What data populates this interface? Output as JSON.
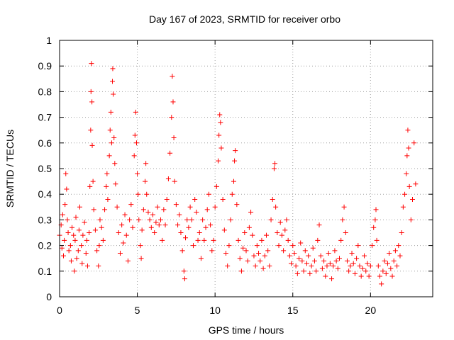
{
  "chart_data": {
    "type": "scatter",
    "title": "Day 167 of 2023, SRMTID for receiver orbo",
    "xlabel": "GPS time / hours",
    "ylabel": "SRMTID / TECUs",
    "xlim": [
      0,
      24
    ],
    "ylim": [
      0,
      1
    ],
    "xticks": [
      0,
      5,
      10,
      15,
      20
    ],
    "xtick_labels": [
      "0",
      "5",
      "10",
      "15",
      "20"
    ],
    "yticks": [
      0,
      0.1,
      0.2,
      0.3,
      0.4,
      0.5,
      0.6,
      0.7,
      0.8,
      0.9,
      1
    ],
    "ytick_labels": [
      "0",
      "0.1",
      "0.2",
      "0.3",
      "0.4",
      "0.5",
      "0.6",
      "0.7",
      "0.8",
      "0.9",
      "1"
    ],
    "grid": true,
    "marker": "+",
    "series": [
      {
        "name": "SRMTID",
        "color": "#ff0000",
        "points": [
          [
            0.0,
            0.24
          ],
          [
            0.1,
            0.28
          ],
          [
            0.15,
            0.19
          ],
          [
            0.2,
            0.32
          ],
          [
            0.25,
            0.16
          ],
          [
            0.3,
            0.22
          ],
          [
            0.35,
            0.36
          ],
          [
            0.4,
            0.48
          ],
          [
            0.45,
            0.42
          ],
          [
            0.5,
            0.3
          ],
          [
            0.55,
            0.25
          ],
          [
            0.6,
            0.18
          ],
          [
            0.7,
            0.2
          ],
          [
            0.75,
            0.14
          ],
          [
            0.8,
            0.27
          ],
          [
            0.9,
            0.24
          ],
          [
            0.95,
            0.1
          ],
          [
            1.0,
            0.22
          ],
          [
            1.05,
            0.31
          ],
          [
            1.1,
            0.15
          ],
          [
            1.2,
            0.18
          ],
          [
            1.25,
            0.26
          ],
          [
            1.3,
            0.35
          ],
          [
            1.4,
            0.2
          ],
          [
            1.45,
            0.13
          ],
          [
            1.5,
            0.24
          ],
          [
            1.6,
            0.29
          ],
          [
            1.7,
            0.17
          ],
          [
            1.75,
            0.22
          ],
          [
            1.8,
            0.12
          ],
          [
            1.9,
            0.25
          ],
          [
            1.95,
            0.43
          ],
          [
            2.0,
            0.65
          ],
          [
            2.02,
            0.8
          ],
          [
            2.05,
            0.91
          ],
          [
            2.08,
            0.76
          ],
          [
            2.1,
            0.59
          ],
          [
            2.15,
            0.45
          ],
          [
            2.2,
            0.34
          ],
          [
            2.3,
            0.26
          ],
          [
            2.4,
            0.18
          ],
          [
            2.5,
            0.12
          ],
          [
            2.55,
            0.2
          ],
          [
            2.6,
            0.3
          ],
          [
            2.7,
            0.27
          ],
          [
            2.8,
            0.22
          ],
          [
            2.9,
            0.34
          ],
          [
            3.0,
            0.43
          ],
          [
            3.05,
            0.48
          ],
          [
            3.1,
            0.38
          ],
          [
            3.2,
            0.55
          ],
          [
            3.25,
            0.65
          ],
          [
            3.3,
            0.72
          ],
          [
            3.35,
            0.6
          ],
          [
            3.4,
            0.84
          ],
          [
            3.42,
            0.89
          ],
          [
            3.45,
            0.79
          ],
          [
            3.5,
            0.62
          ],
          [
            3.55,
            0.52
          ],
          [
            3.6,
            0.44
          ],
          [
            3.7,
            0.35
          ],
          [
            3.8,
            0.25
          ],
          [
            3.9,
            0.17
          ],
          [
            4.0,
            0.28
          ],
          [
            4.1,
            0.21
          ],
          [
            4.2,
            0.32
          ],
          [
            4.3,
            0.24
          ],
          [
            4.4,
            0.14
          ],
          [
            4.5,
            0.3
          ],
          [
            4.6,
            0.36
          ],
          [
            4.7,
            0.27
          ],
          [
            4.8,
            0.55
          ],
          [
            4.85,
            0.63
          ],
          [
            4.9,
            0.72
          ],
          [
            4.95,
            0.6
          ],
          [
            5.0,
            0.48
          ],
          [
            5.05,
            0.4
          ],
          [
            5.1,
            0.3
          ],
          [
            5.2,
            0.2
          ],
          [
            5.25,
            0.15
          ],
          [
            5.3,
            0.26
          ],
          [
            5.4,
            0.34
          ],
          [
            5.5,
            0.45
          ],
          [
            5.55,
            0.52
          ],
          [
            5.6,
            0.4
          ],
          [
            5.7,
            0.33
          ],
          [
            5.8,
            0.3
          ],
          [
            5.9,
            0.27
          ],
          [
            6.0,
            0.32
          ],
          [
            6.1,
            0.25
          ],
          [
            6.2,
            0.29
          ],
          [
            6.3,
            0.35
          ],
          [
            6.4,
            0.28
          ],
          [
            6.5,
            0.3
          ],
          [
            6.6,
            0.22
          ],
          [
            6.7,
            0.34
          ],
          [
            6.8,
            0.28
          ],
          [
            6.9,
            0.38
          ],
          [
            7.0,
            0.46
          ],
          [
            7.1,
            0.56
          ],
          [
            7.2,
            0.7
          ],
          [
            7.25,
            0.86
          ],
          [
            7.3,
            0.76
          ],
          [
            7.35,
            0.62
          ],
          [
            7.4,
            0.45
          ],
          [
            7.5,
            0.36
          ],
          [
            7.6,
            0.28
          ],
          [
            7.7,
            0.32
          ],
          [
            7.8,
            0.25
          ],
          [
            7.9,
            0.18
          ],
          [
            8.0,
            0.1
          ],
          [
            8.05,
            0.07
          ],
          [
            8.1,
            0.23
          ],
          [
            8.2,
            0.3
          ],
          [
            8.3,
            0.27
          ],
          [
            8.4,
            0.35
          ],
          [
            8.5,
            0.3
          ],
          [
            8.6,
            0.2
          ],
          [
            8.7,
            0.38
          ],
          [
            8.8,
            0.33
          ],
          [
            8.9,
            0.22
          ],
          [
            9.0,
            0.25
          ],
          [
            9.1,
            0.15
          ],
          [
            9.2,
            0.3
          ],
          [
            9.3,
            0.22
          ],
          [
            9.4,
            0.27
          ],
          [
            9.5,
            0.34
          ],
          [
            9.6,
            0.4
          ],
          [
            9.7,
            0.28
          ],
          [
            9.8,
            0.18
          ],
          [
            9.9,
            0.22
          ],
          [
            10.0,
            0.35
          ],
          [
            10.1,
            0.43
          ],
          [
            10.2,
            0.53
          ],
          [
            10.25,
            0.63
          ],
          [
            10.3,
            0.71
          ],
          [
            10.35,
            0.68
          ],
          [
            10.4,
            0.58
          ],
          [
            10.5,
            0.38
          ],
          [
            10.6,
            0.26
          ],
          [
            10.7,
            0.17
          ],
          [
            10.8,
            0.12
          ],
          [
            10.9,
            0.2
          ],
          [
            11.0,
            0.3
          ],
          [
            11.1,
            0.4
          ],
          [
            11.2,
            0.45
          ],
          [
            11.25,
            0.53
          ],
          [
            11.3,
            0.57
          ],
          [
            11.4,
            0.36
          ],
          [
            11.5,
            0.22
          ],
          [
            11.6,
            0.15
          ],
          [
            11.7,
            0.1
          ],
          [
            11.8,
            0.19
          ],
          [
            11.9,
            0.25
          ],
          [
            12.0,
            0.18
          ],
          [
            12.1,
            0.14
          ],
          [
            12.2,
            0.27
          ],
          [
            12.3,
            0.33
          ],
          [
            12.4,
            0.24
          ],
          [
            12.5,
            0.16
          ],
          [
            12.6,
            0.12
          ],
          [
            12.7,
            0.2
          ],
          [
            12.8,
            0.17
          ],
          [
            12.9,
            0.14
          ],
          [
            13.0,
            0.22
          ],
          [
            13.1,
            0.11
          ],
          [
            13.2,
            0.16
          ],
          [
            13.3,
            0.24
          ],
          [
            13.4,
            0.18
          ],
          [
            13.5,
            0.12
          ],
          [
            13.6,
            0.3
          ],
          [
            13.7,
            0.38
          ],
          [
            13.8,
            0.5
          ],
          [
            13.85,
            0.52
          ],
          [
            13.9,
            0.35
          ],
          [
            14.0,
            0.25
          ],
          [
            14.1,
            0.2
          ],
          [
            14.2,
            0.29
          ],
          [
            14.3,
            0.24
          ],
          [
            14.4,
            0.18
          ],
          [
            14.5,
            0.26
          ],
          [
            14.6,
            0.3
          ],
          [
            14.7,
            0.22
          ],
          [
            14.8,
            0.16
          ],
          [
            14.9,
            0.13
          ],
          [
            15.0,
            0.2
          ],
          [
            15.1,
            0.17
          ],
          [
            15.2,
            0.12
          ],
          [
            15.3,
            0.09
          ],
          [
            15.4,
            0.15
          ],
          [
            15.5,
            0.21
          ],
          [
            15.6,
            0.14
          ],
          [
            15.7,
            0.1
          ],
          [
            15.8,
            0.18
          ],
          [
            15.9,
            0.13
          ],
          [
            16.0,
            0.16
          ],
          [
            16.1,
            0.09
          ],
          [
            16.2,
            0.12
          ],
          [
            16.3,
            0.19
          ],
          [
            16.4,
            0.14
          ],
          [
            16.5,
            0.1
          ],
          [
            16.6,
            0.22
          ],
          [
            16.7,
            0.28
          ],
          [
            16.8,
            0.16
          ],
          [
            16.9,
            0.11
          ],
          [
            17.0,
            0.14
          ],
          [
            17.1,
            0.08
          ],
          [
            17.2,
            0.12
          ],
          [
            17.3,
            0.17
          ],
          [
            17.4,
            0.13
          ],
          [
            17.5,
            0.07
          ],
          [
            17.6,
            0.12
          ],
          [
            17.7,
            0.18
          ],
          [
            17.8,
            0.14
          ],
          [
            17.9,
            0.11
          ],
          [
            18.0,
            0.15
          ],
          [
            18.1,
            0.22
          ],
          [
            18.2,
            0.3
          ],
          [
            18.3,
            0.35
          ],
          [
            18.4,
            0.25
          ],
          [
            18.5,
            0.14
          ],
          [
            18.6,
            0.1
          ],
          [
            18.7,
            0.12
          ],
          [
            18.8,
            0.17
          ],
          [
            18.9,
            0.13
          ],
          [
            19.0,
            0.09
          ],
          [
            19.1,
            0.15
          ],
          [
            19.2,
            0.2
          ],
          [
            19.3,
            0.12
          ],
          [
            19.4,
            0.08
          ],
          [
            19.5,
            0.11
          ],
          [
            19.6,
            0.16
          ],
          [
            19.7,
            0.1
          ],
          [
            19.8,
            0.13
          ],
          [
            19.9,
            0.08
          ],
          [
            20.0,
            0.12
          ],
          [
            20.1,
            0.2
          ],
          [
            20.2,
            0.27
          ],
          [
            20.3,
            0.3
          ],
          [
            20.35,
            0.34
          ],
          [
            20.4,
            0.22
          ],
          [
            20.5,
            0.12
          ],
          [
            20.6,
            0.08
          ],
          [
            20.7,
            0.05
          ],
          [
            20.8,
            0.1
          ],
          [
            20.9,
            0.14
          ],
          [
            21.0,
            0.09
          ],
          [
            21.1,
            0.13
          ],
          [
            21.2,
            0.17
          ],
          [
            21.3,
            0.11
          ],
          [
            21.4,
            0.08
          ],
          [
            21.5,
            0.14
          ],
          [
            21.6,
            0.18
          ],
          [
            21.7,
            0.12
          ],
          [
            21.8,
            0.2
          ],
          [
            21.9,
            0.16
          ],
          [
            22.0,
            0.25
          ],
          [
            22.1,
            0.35
          ],
          [
            22.2,
            0.4
          ],
          [
            22.3,
            0.48
          ],
          [
            22.35,
            0.55
          ],
          [
            22.4,
            0.65
          ],
          [
            22.45,
            0.58
          ],
          [
            22.5,
            0.43
          ],
          [
            22.6,
            0.3
          ],
          [
            22.7,
            0.38
          ],
          [
            22.8,
            0.6
          ],
          [
            22.9,
            0.44
          ]
        ]
      }
    ]
  }
}
